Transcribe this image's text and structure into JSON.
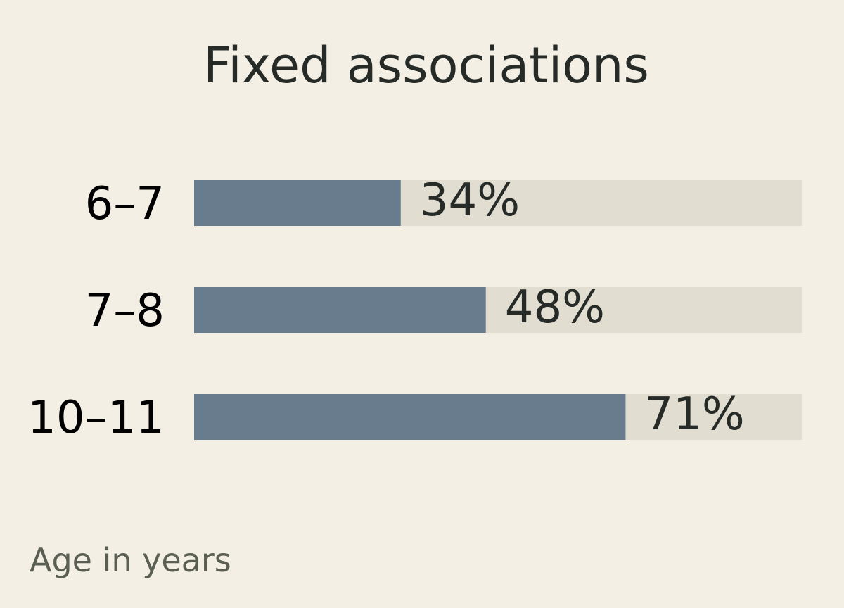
{
  "chart_data": {
    "type": "bar",
    "orientation": "horizontal",
    "title": "Fixed associations",
    "categories": [
      "6–7",
      "7–8",
      "10–11"
    ],
    "values": [
      34,
      48,
      71
    ],
    "value_labels": [
      "34%",
      "48%",
      "71%"
    ],
    "xlim": [
      0,
      100
    ],
    "unit": "%",
    "category_axis_label": "Age in years",
    "grid": false,
    "legend": "none",
    "colors": {
      "bar": "#687c8d",
      "track": "#e1ddd1",
      "background": "#f4efe5"
    }
  }
}
